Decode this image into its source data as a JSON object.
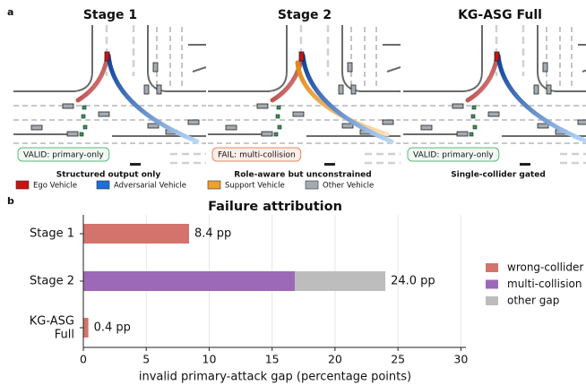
{
  "panel_a": {
    "label": "a",
    "scenes": [
      {
        "title": "Stage 1",
        "badge": "VALID: primary-only",
        "badge_color": "#5cb87a",
        "badge_fill": "#f0faf3",
        "caption": "Structured output only"
      },
      {
        "title": "Stage 2",
        "badge": "FAIL: multi-collision",
        "badge_color": "#e08a6a",
        "badge_fill": "#fdeee8",
        "caption": "Role-aware but unconstrained"
      },
      {
        "title": "KG-ASG Full",
        "badge": "VALID: primary-only",
        "badge_color": "#5cb87a",
        "badge_fill": "#f0faf3",
        "caption": "Single-collider gated"
      }
    ],
    "legend": [
      {
        "name": "Ego Vehicle",
        "color": "#cc1111"
      },
      {
        "name": "Adversarial Vehicle",
        "color": "#1f6fd8"
      },
      {
        "name": "Support Vehicle",
        "color": "#f0a030"
      },
      {
        "name": "Other Vehicle",
        "color": "#a4abb3"
      }
    ]
  },
  "chart_data": {
    "type": "stacked_barh",
    "panel_label": "b",
    "title": "Failure attribution",
    "xlabel": "invalid primary-attack gap (percentage points)",
    "categories": [
      "Stage 1",
      "Stage 2",
      "KG-ASG Full"
    ],
    "series": [
      {
        "name": "wrong-collider",
        "color": "#d4736b",
        "values": [
          8.4,
          0,
          0.4
        ]
      },
      {
        "name": "multi-collision",
        "color": "#9b69b7",
        "values": [
          0,
          16.8,
          0
        ]
      },
      {
        "name": "other gap",
        "color": "#bdbdbd",
        "values": [
          0,
          7.2,
          0
        ]
      }
    ],
    "totals": [
      8.4,
      24.0,
      0.4
    ],
    "value_labels": [
      "8.4 pp",
      "24.0 pp",
      "0.4 pp"
    ],
    "xlim": [
      0,
      30.4
    ],
    "xticks": [
      0,
      5,
      10,
      15,
      20,
      25,
      30
    ],
    "grid": true,
    "legend": "right"
  }
}
